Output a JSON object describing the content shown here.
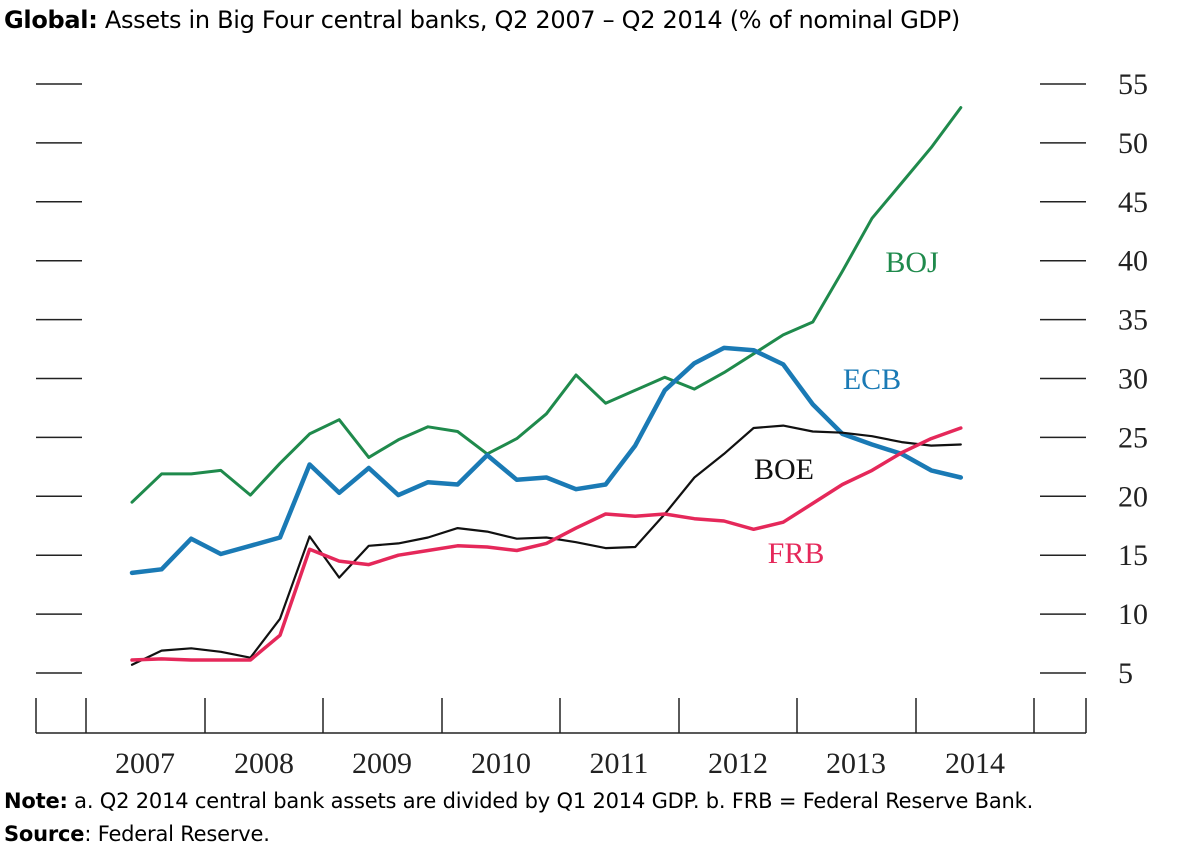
{
  "title": {
    "bold": "Global:",
    "rest": "Assets in Big Four central banks, Q2 2007 – Q2 2014 (% of nominal GDP)"
  },
  "note": {
    "bold": "Note:",
    "text": "a. Q2 2014 central bank assets are divided by Q1 2014 GDP. b. FRB = Federal Reserve Bank."
  },
  "source": {
    "bold": "Source",
    "text": ": Federal Reserve."
  },
  "chart_data": {
    "type": "line",
    "title": "Assets in Big Four central banks, Q2 2007 – Q2 2014 (% of nominal GDP)",
    "xlabel": "",
    "ylabel": "",
    "x_tick_labels": [
      "2007",
      "2008",
      "2009",
      "2010",
      "2011",
      "2012",
      "2013",
      "2014"
    ],
    "y_tick_labels": [
      "5",
      "10",
      "15",
      "20",
      "25",
      "30",
      "35",
      "40",
      "45",
      "50",
      "55"
    ],
    "ylim": [
      0,
      55
    ],
    "grid": false,
    "x": [
      "Q2 2007",
      "Q3 2007",
      "Q4 2007",
      "Q1 2008",
      "Q2 2008",
      "Q3 2008",
      "Q4 2008",
      "Q1 2009",
      "Q2 2009",
      "Q3 2009",
      "Q4 2009",
      "Q1 2010",
      "Q2 2010",
      "Q3 2010",
      "Q4 2010",
      "Q1 2011",
      "Q2 2011",
      "Q3 2011",
      "Q4 2011",
      "Q1 2012",
      "Q2 2012",
      "Q3 2012",
      "Q4 2012",
      "Q1 2013",
      "Q2 2013",
      "Q3 2013",
      "Q4 2013",
      "Q1 2014",
      "Q2 2014"
    ],
    "series": [
      {
        "name": "BOJ",
        "color": "#1f8a4c",
        "values": [
          19.5,
          21.9,
          21.9,
          22.2,
          20.1,
          22.8,
          25.3,
          26.5,
          23.3,
          24.8,
          25.9,
          25.5,
          23.6,
          24.9,
          27,
          30.3,
          27.9,
          29,
          30.1,
          29.1,
          30.5,
          32.1,
          33.7,
          34.8,
          39.1,
          43.6,
          46.6,
          49.6,
          53
        ]
      },
      {
        "name": "ECB",
        "color": "#1a7ab5",
        "values": [
          13.5,
          13.8,
          16.4,
          15.1,
          15.8,
          16.5,
          22.7,
          20.3,
          22.4,
          20.1,
          21.2,
          21,
          23.5,
          21.4,
          21.6,
          20.6,
          21,
          24.3,
          29,
          31.3,
          32.6,
          32.4,
          31.2,
          27.8,
          25.3,
          24.4,
          23.6,
          22.2,
          21.6
        ]
      },
      {
        "name": "BOE",
        "color": "#111111",
        "values": [
          5.7,
          6.9,
          7.1,
          6.8,
          6.3,
          9.6,
          16.6,
          13.1,
          15.8,
          16,
          16.5,
          17.3,
          17,
          16.4,
          16.5,
          16.1,
          15.6,
          15.7,
          18.5,
          21.6,
          23.6,
          25.8,
          26,
          25.5,
          25.4,
          25.1,
          24.6,
          24.3,
          24.4
        ]
      },
      {
        "name": "FRB",
        "color": "#e5285a",
        "values": [
          6.1,
          6.2,
          6.1,
          6.1,
          6.1,
          8.2,
          15.5,
          14.5,
          14.2,
          15,
          15.4,
          15.8,
          15.7,
          15.4,
          16,
          17.3,
          18.5,
          18.3,
          18.5,
          18.1,
          17.9,
          17.2,
          17.8,
          19.4,
          21,
          22.2,
          23.7,
          24.9,
          25.8
        ]
      }
    ]
  }
}
